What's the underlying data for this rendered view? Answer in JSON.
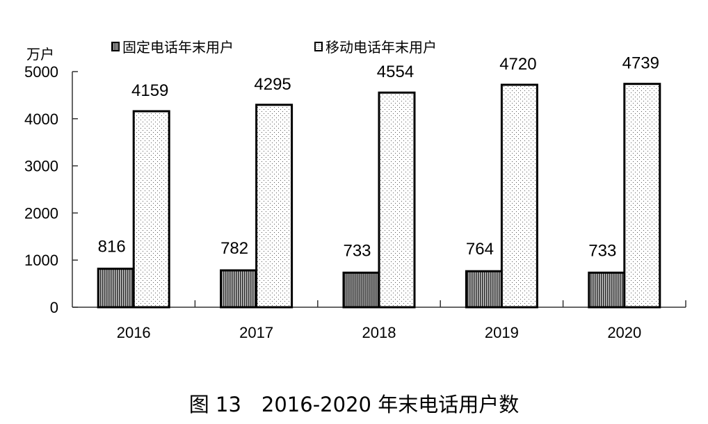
{
  "chart_data": {
    "type": "bar",
    "title": "图13　2016-2020 年末电话用户数",
    "xlabel": "",
    "ylabel": "万户",
    "categories": [
      "2016",
      "2017",
      "2018",
      "2019",
      "2020"
    ],
    "series": [
      {
        "name": "固定电话年末用户",
        "values": [
          816,
          782,
          733,
          764,
          733
        ],
        "pattern": "vertical-stripes"
      },
      {
        "name": "移动电话年末用户",
        "values": [
          4159,
          4295,
          4554,
          4720,
          4739
        ],
        "pattern": "dots"
      }
    ],
    "ylim": [
      0,
      5000
    ],
    "yticks": [
      0,
      1000,
      2000,
      3000,
      4000,
      5000
    ],
    "grid": false,
    "legend_position": "top",
    "data_labels": true
  },
  "chart": {
    "unit_label": "万户",
    "legend": {
      "fixed": "固定电话年末用户",
      "mobile": "移动电话年末用户"
    },
    "caption": "图 13　2016-2020 年末电话用户数"
  }
}
